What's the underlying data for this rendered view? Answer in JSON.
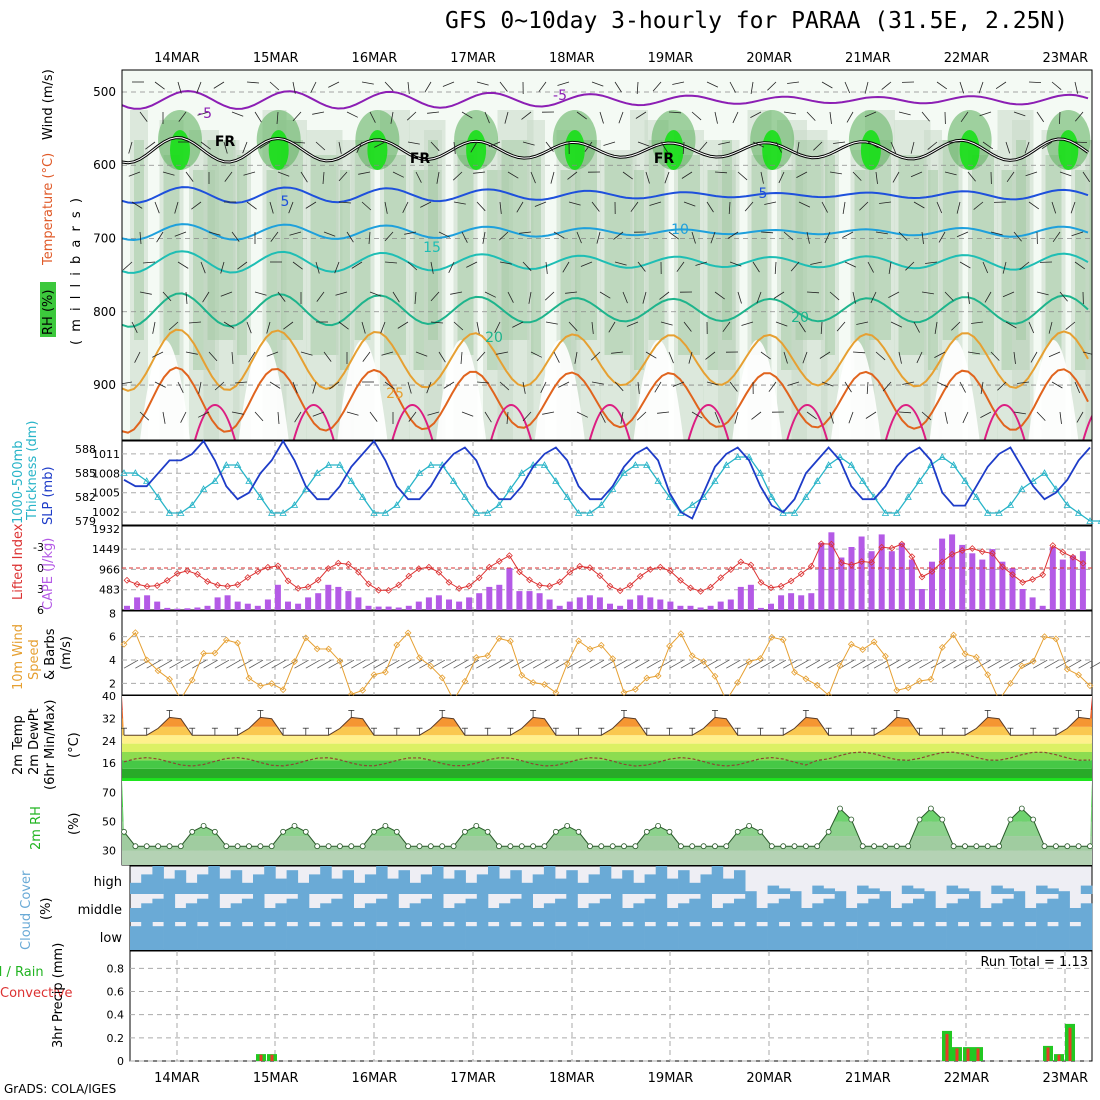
{
  "title": "GFS 0~10day 3-hourly for PARAA (31.5E, 2.25N)",
  "footer": "GrADS: COLA/IGES",
  "dates": [
    "14MAR",
    "15MAR",
    "16MAR",
    "17MAR",
    "18MAR",
    "19MAR",
    "20MAR",
    "21MAR",
    "22MAR",
    "23MAR"
  ],
  "colors": {
    "green": "#22b422",
    "cape": "#b45ae6",
    "li": "#dc3232",
    "slp": "#1e3cc8",
    "thick": "#28b4c8",
    "wind": "#e6a032",
    "cloud": "#6aaad6",
    "rain": "#e63c28"
  },
  "panels": {
    "upper": {
      "ylabels": [
        "RH (%)",
        "Temperature (°C)",
        "Wind (m/s)",
        "( m i l l i b a r s )"
      ],
      "yticks": [
        "500",
        "600",
        "700",
        "800",
        "900"
      ],
      "contour_labels": [
        "-5",
        "-5",
        "FR",
        "FR",
        "FR",
        "5",
        "5",
        "10",
        "15",
        "20",
        "20",
        "25"
      ]
    },
    "surface": {
      "ylabels": [
        "1000-500mb",
        "Thickness (dm)",
        "SLP (mb)"
      ],
      "thick_ticks": [
        "588",
        "585",
        "582",
        "579"
      ],
      "slp_ticks": [
        "1011",
        "1008",
        "1005",
        "1002"
      ]
    },
    "stability": {
      "ylabels": [
        "Lifted Index",
        "CAPE (J/kg)"
      ],
      "li_ticks": [
        "-3",
        "0",
        "3",
        "6"
      ],
      "cape_ticks": [
        "1932",
        "1449",
        "966",
        "483"
      ]
    },
    "wind": {
      "ylabels": [
        "10m Wind",
        "Speed",
        "& Barbs",
        "(m/s)"
      ],
      "yticks": [
        "8",
        "6",
        "4",
        "2"
      ]
    },
    "temp": {
      "ylabels": [
        "2m Temp",
        "2m DewPt",
        "(6hr Min/Max)",
        "(°C)"
      ],
      "yticks": [
        "40",
        "32",
        "24",
        "16"
      ]
    },
    "rh": {
      "ylabels": [
        "2m RH",
        "(%)"
      ],
      "yticks": [
        "70",
        "50",
        "30"
      ]
    },
    "cloud": {
      "ylabels": [
        "Cloud Cover",
        "(%)"
      ],
      "levels": [
        "high",
        "middle",
        "low"
      ]
    },
    "precip": {
      "ylabels": [
        "Total / Rain",
        "Convective",
        "3hr Precip (mm)"
      ],
      "yticks": [
        "0.8",
        "0.6",
        "0.4",
        "0.2",
        "0"
      ],
      "run_total": "Run Total = 1.13"
    }
  },
  "chart_data": {
    "type": "line",
    "x_unit": "3-hourly steps from 13 MAR 12Z",
    "slp": [
      1007,
      1006,
      1006,
      1008,
      1010,
      1010,
      1011,
      1013,
      1010,
      1006,
      1004,
      1005,
      1008,
      1010,
      1013,
      1010,
      1006,
      1004,
      1004,
      1006,
      1009,
      1011,
      1013,
      1010,
      1006,
      1004,
      1004,
      1006,
      1009,
      1011,
      1012,
      1010,
      1006,
      1004,
      1004,
      1006,
      1009,
      1011,
      1012,
      1010,
      1006,
      1004,
      1004,
      1006,
      1009,
      1011,
      1012,
      1010,
      1005,
      1002,
      1001,
      1005,
      1009,
      1011,
      1012,
      1010,
      1006,
      1003,
      1002,
      1004,
      1008,
      1010,
      1012,
      1010,
      1006,
      1004,
      1004,
      1006,
      1009,
      1011,
      1012,
      1010,
      1005,
      1003,
      1003,
      1006,
      1009,
      1011,
      1012,
      1009,
      1006,
      1004,
      1005,
      1007,
      1010,
      1012
    ],
    "thickness": [
      585,
      585,
      584,
      582,
      580,
      580,
      581,
      583,
      584,
      586,
      586,
      584,
      582,
      580,
      580,
      581,
      583,
      585,
      586,
      586,
      584,
      582,
      580,
      580,
      581,
      583,
      585,
      586,
      586,
      584,
      582,
      580,
      580,
      581,
      583,
      585,
      586,
      586,
      584,
      582,
      580,
      580,
      581,
      583,
      585,
      586,
      586,
      584,
      582,
      580,
      581,
      582,
      584,
      586,
      587,
      587,
      585,
      582,
      580,
      580,
      582,
      584,
      586,
      587,
      586,
      584,
      582,
      580,
      580,
      582,
      584,
      586,
      587,
      586,
      584,
      582,
      580,
      580,
      581,
      583,
      584,
      585,
      583,
      581,
      580,
      579,
      579
    ],
    "cape": [
      100,
      300,
      350,
      200,
      50,
      30,
      40,
      60,
      100,
      300,
      350,
      200,
      150,
      100,
      250,
      600,
      200,
      150,
      300,
      400,
      600,
      550,
      450,
      300,
      100,
      80,
      80,
      60,
      100,
      200,
      300,
      350,
      250,
      200,
      300,
      400,
      550,
      600,
      1000,
      450,
      450,
      400,
      250,
      100,
      200,
      300,
      350,
      300,
      150,
      100,
      250,
      350,
      300,
      250,
      200,
      100,
      100,
      60,
      100,
      200,
      250,
      550,
      600,
      50,
      150,
      350,
      400,
      350,
      400,
      1600,
      1850,
      1250,
      1500,
      1750,
      1400,
      1800,
      1400,
      1600,
      1200,
      500,
      1150,
      1700,
      1800,
      1550,
      1350,
      1200,
      1450,
      1150,
      1000,
      500,
      300,
      100,
      1500,
      1200,
      1300,
      1400
    ]
  }
}
